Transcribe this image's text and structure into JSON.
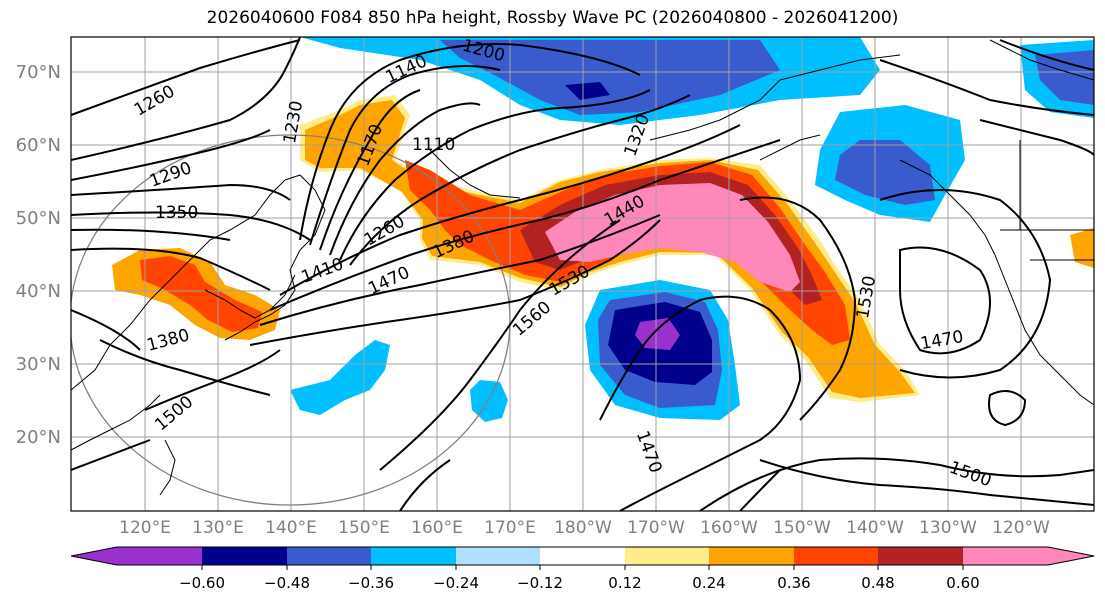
{
  "title": "2026040600 F084 850 hPa height, Rossby Wave PC (2026040800 - 2026041200)",
  "lat_labels": [
    "70°N",
    "60°N",
    "50°N",
    "40°N",
    "30°N",
    "20°N"
  ],
  "lon_labels": [
    "120°E",
    "130°E",
    "140°E",
    "150°E",
    "160°E",
    "170°E",
    "180°W",
    "170°W",
    "160°W",
    "150°W",
    "140°W",
    "130°W",
    "120°W"
  ],
  "contour_labels": [
    "1260",
    "1230",
    "1170",
    "1140",
    "1200",
    "1110",
    "1320",
    "1290",
    "1350",
    "1260",
    "1380",
    "1410",
    "1470",
    "1440",
    "1530",
    "1560",
    "1380",
    "1500",
    "1530",
    "1470",
    "1470",
    "1500"
  ],
  "colorbar": {
    "colors": [
      "#9932cc",
      "#00008b",
      "#3a5bcd",
      "#00bfff",
      "#b0e0ff",
      "#ffffff",
      "#ffec8b",
      "#ffa500",
      "#ff4500",
      "#b22222",
      "#ff88bb"
    ],
    "tick_labels": [
      "−0.60",
      "−0.48",
      "−0.36",
      "−0.24",
      "−0.12",
      "0.12",
      "0.24",
      "0.36",
      "0.48",
      "0.60"
    ]
  }
}
